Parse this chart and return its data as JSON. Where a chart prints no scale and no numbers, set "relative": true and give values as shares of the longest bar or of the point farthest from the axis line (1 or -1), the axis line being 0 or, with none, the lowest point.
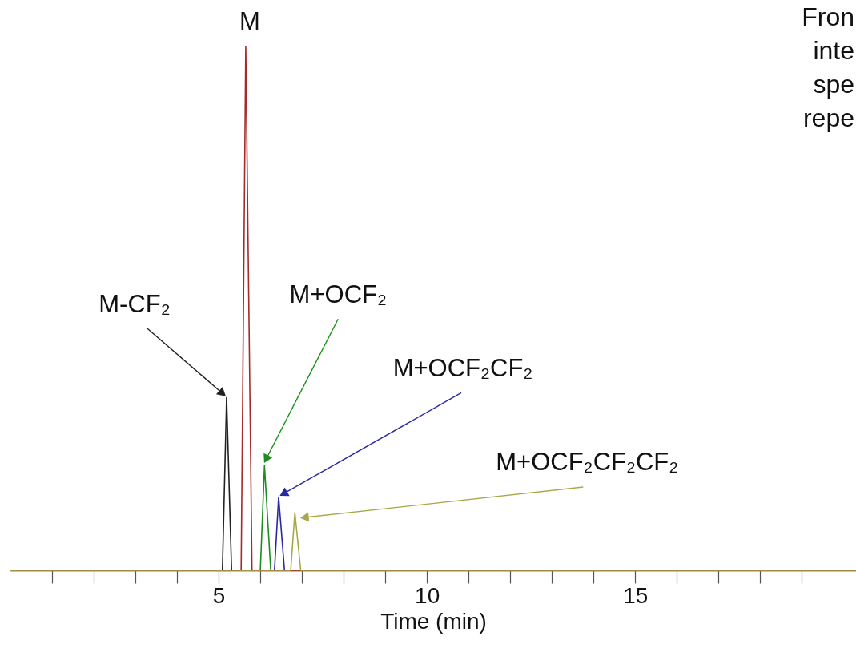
{
  "chart_data": {
    "type": "line",
    "relative": true,
    "xlabel": "Time (min)",
    "xlim": [
      0,
      20.3
    ],
    "xticks": [
      {
        "value": 1,
        "label": null
      },
      {
        "value": 2,
        "label": null
      },
      {
        "value": 3,
        "label": null
      },
      {
        "value": 4,
        "label": null
      },
      5,
      {
        "value": 6,
        "label": null
      },
      {
        "value": 7,
        "label": null
      },
      {
        "value": 8,
        "label": null
      },
      {
        "value": 9,
        "label": null
      },
      10,
      {
        "value": 11,
        "label": null
      },
      {
        "value": 12,
        "label": null
      },
      {
        "value": 13,
        "label": null
      },
      {
        "value": 14,
        "label": null
      },
      15,
      {
        "value": 16,
        "label": null
      },
      {
        "value": 17,
        "label": null
      },
      {
        "value": 18,
        "label": null
      },
      {
        "value": 19,
        "label": null
      }
    ],
    "grid": false,
    "legend": false,
    "series": [
      {
        "color": "#222222",
        "x": [
          5.09,
          5.19,
          5.31
        ],
        "values": [
          0,
          0.33,
          0
        ]
      },
      {
        "color": "#a52a2a",
        "x": [
          0,
          5.54,
          5.65,
          5.8,
          20.3
        ],
        "values": [
          0,
          0,
          1,
          0,
          0
        ]
      },
      {
        "color": "#1e8c1e",
        "x": [
          6.0,
          6.1,
          6.25
        ],
        "values": [
          0,
          0.2,
          0
        ]
      },
      {
        "color": "#2828a0",
        "x": [
          6.34,
          6.44,
          6.58
        ],
        "values": [
          0,
          0.14,
          0
        ]
      },
      {
        "color": "#a8a848",
        "x": [
          0,
          6.73,
          6.83,
          6.97,
          20.3
        ],
        "values": [
          0,
          0,
          0.11,
          0,
          0
        ]
      }
    ],
    "annotations": [
      {
        "text": "M-CF₂",
        "x": 5.19,
        "y": 0.33
      },
      {
        "text": "M",
        "x": 5.65,
        "y": 1
      },
      {
        "text": "M+OCF₂",
        "x": 6.1,
        "y": 0.2
      },
      {
        "text": "M+OCF₂CF₂",
        "x": 6.44,
        "y": 0.14
      },
      "M+OCF₂CF₂CF₂",
      "Fron",
      "inte",
      "spe",
      "repe"
    ]
  }
}
